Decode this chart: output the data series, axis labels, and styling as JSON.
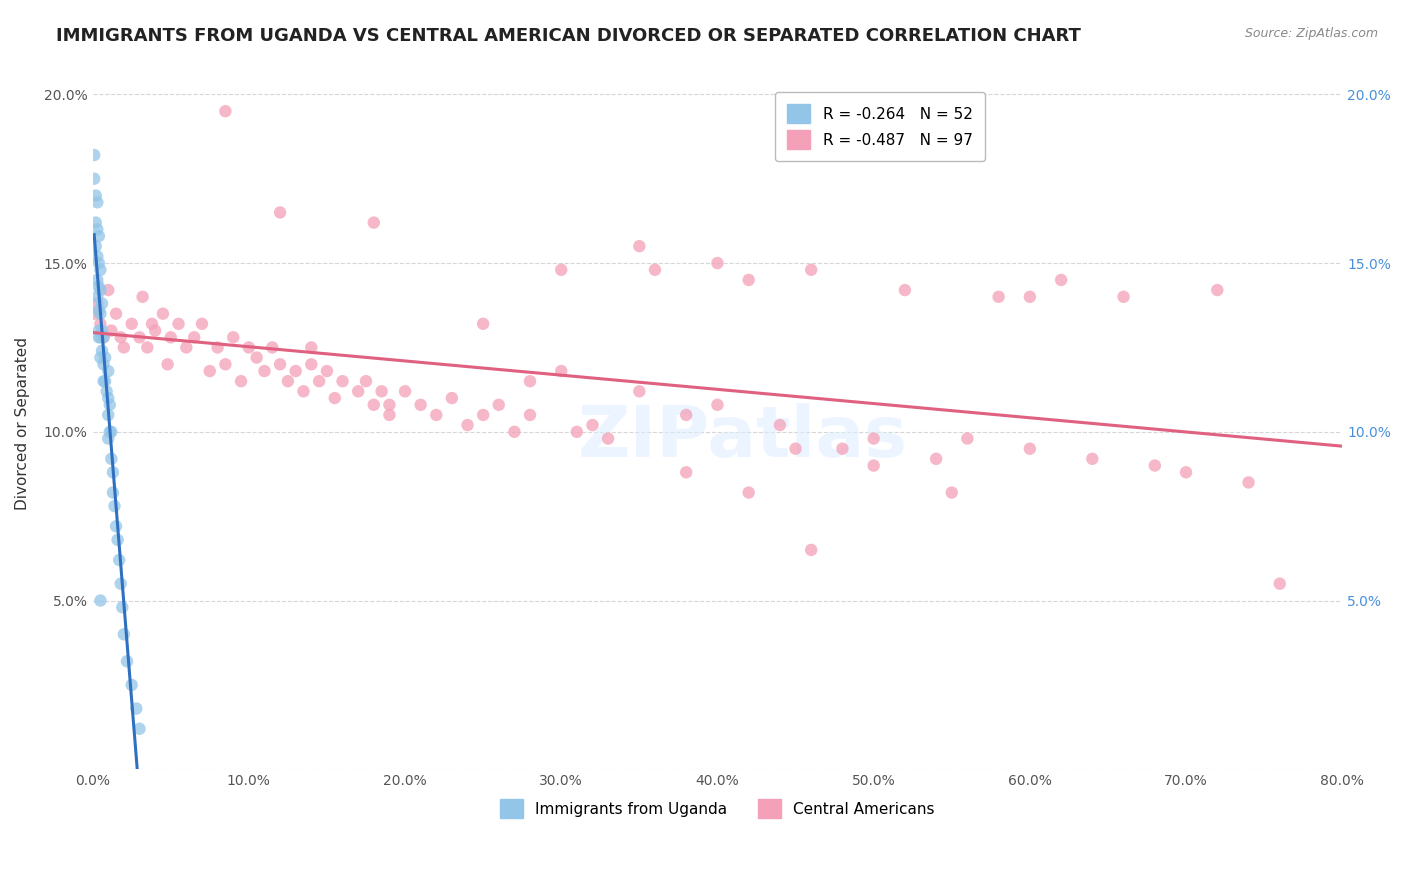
{
  "title": "IMMIGRANTS FROM UGANDA VS CENTRAL AMERICAN DIVORCED OR SEPARATED CORRELATION CHART",
  "source_text": "Source: ZipAtlas.com",
  "ylabel": "Divorced or Separated",
  "xlim": [
    0.0,
    0.8
  ],
  "ylim": [
    0.0,
    0.205
  ],
  "x_ticks": [
    0.0,
    0.1,
    0.2,
    0.3,
    0.4,
    0.5,
    0.6,
    0.7,
    0.8
  ],
  "x_tick_labels": [
    "0.0%",
    "10.0%",
    "20.0%",
    "30.0%",
    "40.0%",
    "50.0%",
    "60.0%",
    "70.0%",
    "80.0%"
  ],
  "y_ticks": [
    0.0,
    0.05,
    0.1,
    0.15,
    0.2
  ],
  "y_tick_labels_left": [
    "",
    "5.0%",
    "10.0%",
    "15.0%",
    "20.0%"
  ],
  "y_tick_labels_right": [
    "",
    "5.0%",
    "10.0%",
    "15.0%",
    "20.0%"
  ],
  "uganda_color": "#92c5e8",
  "central_color": "#f4a0b8",
  "uganda_line_color": "#3070c0",
  "central_line_color": "#e06080",
  "uganda_scatter_x": [
    0.001,
    0.001,
    0.002,
    0.002,
    0.002,
    0.003,
    0.003,
    0.003,
    0.003,
    0.003,
    0.004,
    0.004,
    0.004,
    0.004,
    0.004,
    0.004,
    0.005,
    0.005,
    0.005,
    0.005,
    0.005,
    0.006,
    0.006,
    0.006,
    0.007,
    0.007,
    0.007,
    0.008,
    0.008,
    0.009,
    0.01,
    0.01,
    0.01,
    0.01,
    0.011,
    0.011,
    0.012,
    0.012,
    0.013,
    0.013,
    0.014,
    0.015,
    0.016,
    0.017,
    0.018,
    0.019,
    0.02,
    0.022,
    0.025,
    0.028,
    0.03,
    0.005
  ],
  "uganda_scatter_y": [
    0.175,
    0.182,
    0.17,
    0.162,
    0.155,
    0.168,
    0.16,
    0.152,
    0.145,
    0.14,
    0.158,
    0.15,
    0.143,
    0.136,
    0.13,
    0.128,
    0.148,
    0.142,
    0.135,
    0.128,
    0.122,
    0.138,
    0.13,
    0.124,
    0.128,
    0.12,
    0.115,
    0.122,
    0.115,
    0.112,
    0.118,
    0.11,
    0.105,
    0.098,
    0.108,
    0.1,
    0.1,
    0.092,
    0.088,
    0.082,
    0.078,
    0.072,
    0.068,
    0.062,
    0.055,
    0.048,
    0.04,
    0.032,
    0.025,
    0.018,
    0.012,
    0.05
  ],
  "central_scatter_x": [
    0.001,
    0.003,
    0.005,
    0.007,
    0.01,
    0.012,
    0.015,
    0.018,
    0.02,
    0.025,
    0.03,
    0.032,
    0.035,
    0.038,
    0.04,
    0.045,
    0.048,
    0.05,
    0.055,
    0.06,
    0.065,
    0.07,
    0.075,
    0.08,
    0.085,
    0.09,
    0.095,
    0.1,
    0.105,
    0.11,
    0.115,
    0.12,
    0.125,
    0.13,
    0.135,
    0.14,
    0.145,
    0.15,
    0.155,
    0.16,
    0.17,
    0.175,
    0.18,
    0.185,
    0.19,
    0.2,
    0.21,
    0.22,
    0.23,
    0.24,
    0.25,
    0.26,
    0.27,
    0.28,
    0.3,
    0.31,
    0.32,
    0.33,
    0.35,
    0.36,
    0.38,
    0.4,
    0.42,
    0.44,
    0.46,
    0.48,
    0.5,
    0.52,
    0.54,
    0.56,
    0.58,
    0.6,
    0.62,
    0.64,
    0.66,
    0.68,
    0.7,
    0.72,
    0.74,
    0.76,
    0.12,
    0.18,
    0.25,
    0.3,
    0.35,
    0.4,
    0.45,
    0.5,
    0.55,
    0.6,
    0.38,
    0.42,
    0.46,
    0.28,
    0.19,
    0.14,
    0.085
  ],
  "central_scatter_y": [
    0.135,
    0.138,
    0.132,
    0.128,
    0.142,
    0.13,
    0.135,
    0.128,
    0.125,
    0.132,
    0.128,
    0.14,
    0.125,
    0.132,
    0.13,
    0.135,
    0.12,
    0.128,
    0.132,
    0.125,
    0.128,
    0.132,
    0.118,
    0.125,
    0.12,
    0.128,
    0.115,
    0.125,
    0.122,
    0.118,
    0.125,
    0.12,
    0.115,
    0.118,
    0.112,
    0.12,
    0.115,
    0.118,
    0.11,
    0.115,
    0.112,
    0.115,
    0.108,
    0.112,
    0.105,
    0.112,
    0.108,
    0.105,
    0.11,
    0.102,
    0.105,
    0.108,
    0.1,
    0.105,
    0.148,
    0.1,
    0.102,
    0.098,
    0.155,
    0.148,
    0.105,
    0.15,
    0.145,
    0.102,
    0.148,
    0.095,
    0.098,
    0.142,
    0.092,
    0.098,
    0.14,
    0.095,
    0.145,
    0.092,
    0.14,
    0.09,
    0.088,
    0.142,
    0.085,
    0.055,
    0.165,
    0.162,
    0.132,
    0.118,
    0.112,
    0.108,
    0.095,
    0.09,
    0.082,
    0.14,
    0.088,
    0.082,
    0.065,
    0.115,
    0.108,
    0.125,
    0.195
  ],
  "watermark_text": "ZIPatlas",
  "legend_top_labels": [
    "R = -0.264   N = 52",
    "R = -0.487   N = 97"
  ],
  "legend_bottom_labels": [
    "Immigrants from Uganda",
    "Central Americans"
  ]
}
